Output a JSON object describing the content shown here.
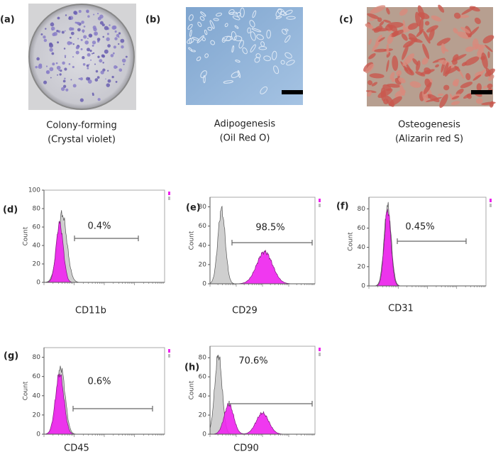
{
  "photos": [
    {
      "label": "(a)",
      "caption": [
        "Colony-forming",
        "(Crystal violet)"
      ]
    },
    {
      "label": "(b)",
      "caption": [
        "Adipogenesis",
        "(Oil Red O)"
      ]
    },
    {
      "label": "(c)",
      "caption": [
        "Osteogenesis",
        "(Alizarin red S)"
      ]
    }
  ],
  "histograms": [
    {
      "label": "(d)",
      "ylabel": "Count",
      "ylim": [
        0,
        100
      ],
      "yticks": [
        0,
        20,
        40,
        60,
        80,
        100
      ],
      "gate_label": "0.4%",
      "marker": "CD11b"
    },
    {
      "label": "(e)",
      "ylabel": "Count",
      "ylim": [
        0,
        90
      ],
      "yticks": [
        0,
        20,
        40,
        60,
        80
      ],
      "gate_label": "98.5%",
      "marker": "CD29"
    },
    {
      "label": "(f)",
      "ylabel": "Count",
      "ylim": [
        0,
        92
      ],
      "yticks": [
        0,
        20,
        40,
        60,
        80
      ],
      "gate_label": "0.45%",
      "marker": "CD31"
    },
    {
      "label": "(g)",
      "ylabel": "Count",
      "ylim": [
        0,
        90
      ],
      "yticks": [
        0,
        20,
        40,
        60,
        80
      ],
      "gate_label": "0.6%",
      "marker": "CD45"
    },
    {
      "label": "(h)",
      "ylabel": "Count",
      "ylim": [
        0,
        92
      ],
      "yticks": [
        0,
        20,
        40,
        60,
        80
      ],
      "gate_label": "70.6%",
      "marker": "CD90"
    }
  ]
}
